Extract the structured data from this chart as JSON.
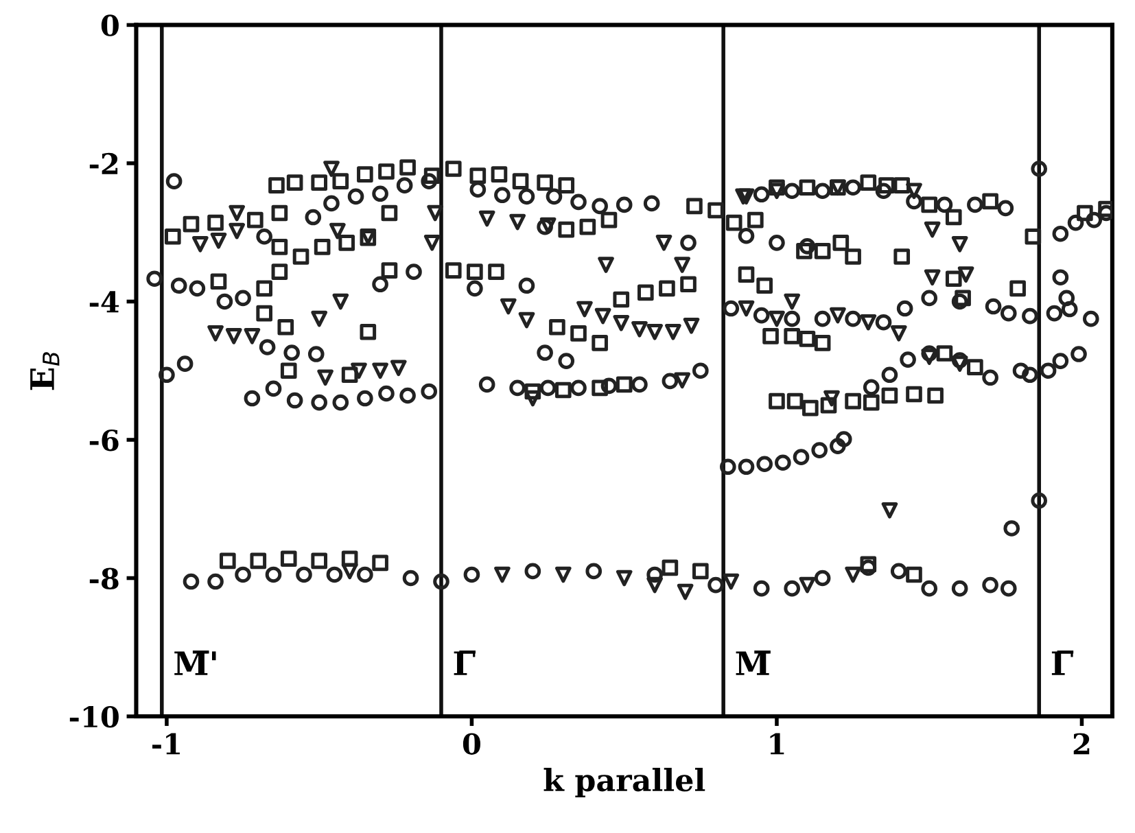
{
  "chart_data": {
    "type": "scatter",
    "xlabel": "k parallel",
    "ylabel": "E$_{B}$",
    "xlim": [
      -1.1,
      2.1
    ],
    "ylim": [
      -10,
      0
    ],
    "xticks": [
      -1,
      0,
      1,
      2
    ],
    "yticks": [
      0,
      -2,
      -4,
      -6,
      -8,
      -10
    ],
    "grid": false,
    "legend": false,
    "series": [
      {
        "color": "#222222",
        "marker": "circle",
        "x": [
          -0.976,
          -0.46,
          -0.38,
          -0.3,
          -0.22,
          -0.14,
          0.02,
          0.1,
          0.18,
          0.27,
          0.35,
          0.42,
          0.5,
          0.59,
          0.71,
          -0.68,
          -0.52,
          0.24,
          -1.04,
          -0.96,
          -0.9,
          -0.81,
          -0.75,
          -0.3,
          -0.19,
          0.01,
          0.18,
          0.24,
          0.31,
          -0.67,
          -0.59,
          -0.51,
          -1.0,
          -0.94,
          -0.72,
          -0.65,
          -0.58,
          -0.5,
          -0.43,
          -0.35,
          -0.28,
          -0.21,
          -0.14,
          0.05,
          0.15,
          0.25,
          0.35,
          0.45,
          0.55,
          0.65,
          0.75,
          0.84,
          0.9,
          0.96,
          1.02,
          1.08,
          1.14,
          1.2,
          1.22,
          1.31,
          1.37,
          1.43,
          1.5,
          1.6,
          1.7,
          1.8,
          1.83,
          1.89,
          1.93,
          1.99,
          1.71,
          1.76,
          1.83,
          1.91,
          1.96,
          2.03,
          1.95,
          1.93,
          1.86,
          1.93,
          1.98,
          2.04,
          2.08,
          0.9,
          1.0,
          1.1,
          0.85,
          0.95,
          1.05,
          1.15,
          1.25,
          1.35,
          1.42,
          1.5,
          1.6,
          0.95,
          1.05,
          1.15,
          1.25,
          1.35,
          1.45,
          1.55,
          1.65,
          1.75,
          1.77,
          1.86,
          -0.92,
          -0.84,
          -0.75,
          -0.65,
          -0.55,
          -0.45,
          -0.35,
          -0.2,
          -0.1,
          0.0,
          0.2,
          0.4,
          0.6,
          0.8,
          0.95,
          1.05,
          1.15,
          1.3,
          1.4,
          1.5,
          1.6,
          1.7,
          1.76
        ],
        "values": [
          -2.26,
          -2.58,
          -2.48,
          -2.44,
          -2.32,
          -2.26,
          -2.38,
          -2.46,
          -2.48,
          -2.48,
          -2.56,
          -2.62,
          -2.6,
          -2.58,
          -3.15,
          -3.06,
          -2.78,
          -2.92,
          -3.67,
          -3.77,
          -3.81,
          -4.0,
          -3.95,
          -3.75,
          -3.57,
          -3.81,
          -3.77,
          -4.74,
          -4.86,
          -4.66,
          -4.74,
          -4.76,
          -5.06,
          -4.9,
          -5.4,
          -5.26,
          -5.43,
          -5.46,
          -5.46,
          -5.4,
          -5.33,
          -5.36,
          -5.3,
          -5.2,
          -5.25,
          -5.25,
          -5.25,
          -5.22,
          -5.2,
          -5.15,
          -5.0,
          -6.39,
          -6.39,
          -6.35,
          -6.33,
          -6.25,
          -6.15,
          -6.09,
          -5.99,
          -5.24,
          -5.06,
          -4.84,
          -4.75,
          -4.85,
          -5.1,
          -5.0,
          -5.06,
          -5.0,
          -4.86,
          -4.76,
          -4.07,
          -4.17,
          -4.21,
          -4.17,
          -4.11,
          -4.25,
          -3.95,
          -3.65,
          -2.08,
          -3.02,
          -2.86,
          -2.82,
          -2.72,
          -3.05,
          -3.15,
          -3.2,
          -4.1,
          -4.2,
          -4.25,
          -4.25,
          -4.25,
          -4.3,
          -4.1,
          -3.95,
          -4.0,
          -2.45,
          -2.4,
          -2.4,
          -2.35,
          -2.4,
          -2.55,
          -2.6,
          -2.6,
          -2.65,
          -7.28,
          -6.88,
          -8.05,
          -8.05,
          -7.95,
          -7.95,
          -7.95,
          -7.95,
          -7.95,
          -8.0,
          -8.05,
          -7.95,
          -7.9,
          -7.9,
          -7.95,
          -8.1,
          -8.15,
          -8.15,
          -8.0,
          -7.85,
          -7.9,
          -8.15,
          -8.15,
          -8.1,
          -8.15
        ]
      },
      {
        "color": "#222222",
        "marker": "square",
        "x": [
          -0.64,
          -0.58,
          -0.5,
          -0.43,
          -0.35,
          -0.28,
          -0.21,
          -0.13,
          -0.06,
          0.02,
          0.09,
          0.16,
          0.24,
          0.31,
          0.73,
          0.8,
          -0.98,
          -0.92,
          -0.84,
          -0.71,
          -0.63,
          -0.27,
          -0.63,
          -0.56,
          -0.49,
          -0.41,
          -0.34,
          0.31,
          0.38,
          0.45,
          -0.83,
          -0.68,
          -0.63,
          -0.68,
          -0.27,
          -0.61,
          -0.34,
          -0.6,
          -0.4,
          -0.06,
          0.01,
          0.08,
          0.28,
          0.35,
          0.42,
          0.49,
          0.57,
          0.64,
          0.71,
          0.9,
          0.96,
          0.98,
          1.05,
          1.1,
          1.15,
          1.09,
          1.15,
          1.21,
          1.25,
          1.41,
          1.58,
          1.84,
          1.0,
          1.06,
          1.11,
          1.17,
          1.25,
          1.31,
          1.37,
          1.45,
          1.52,
          1.58,
          1.79,
          1.61,
          1.3,
          1.36,
          1.41,
          0.93,
          0.86,
          1.0,
          1.1,
          1.2,
          1.5,
          1.7,
          2.01,
          2.08,
          0.2,
          0.3,
          0.42,
          0.5,
          1.55,
          1.65,
          -0.8,
          -0.7,
          -0.6,
          -0.5,
          -0.4,
          -0.3,
          0.65,
          0.75,
          1.3,
          1.45
        ],
        "values": [
          -2.32,
          -2.28,
          -2.28,
          -2.26,
          -2.16,
          -2.12,
          -2.06,
          -2.18,
          -2.08,
          -2.18,
          -2.16,
          -2.26,
          -2.28,
          -2.32,
          -2.62,
          -2.68,
          -3.06,
          -2.88,
          -2.86,
          -2.82,
          -2.72,
          -2.72,
          -3.21,
          -3.35,
          -3.21,
          -3.15,
          -3.08,
          -2.96,
          -2.92,
          -2.82,
          -3.71,
          -3.81,
          -3.57,
          -4.17,
          -3.55,
          -4.37,
          -4.44,
          -5.0,
          -5.06,
          -3.55,
          -3.57,
          -3.57,
          -4.37,
          -4.46,
          -4.6,
          -3.97,
          -3.87,
          -3.81,
          -3.75,
          -3.61,
          -3.77,
          -4.5,
          -4.5,
          -4.54,
          -4.6,
          -3.27,
          -3.27,
          -3.15,
          -3.35,
          -3.35,
          -2.78,
          -3.06,
          -5.44,
          -5.44,
          -5.54,
          -5.5,
          -5.44,
          -5.46,
          -5.36,
          -5.34,
          -5.36,
          -3.67,
          -3.81,
          -3.95,
          -2.28,
          -2.32,
          -2.32,
          -2.82,
          -2.86,
          -2.35,
          -2.35,
          -2.35,
          -2.6,
          -2.55,
          -2.72,
          -2.66,
          -5.3,
          -5.28,
          -5.25,
          -5.2,
          -4.75,
          -4.95,
          -7.75,
          -7.75,
          -7.72,
          -7.75,
          -7.72,
          -7.78,
          -7.85,
          -7.9,
          -7.8,
          -7.95
        ]
      },
      {
        "color": "#222222",
        "marker": "triangle_down",
        "x": [
          -0.46,
          -0.89,
          -0.83,
          -0.77,
          -0.77,
          -0.44,
          -0.34,
          -0.13,
          -0.84,
          -0.78,
          -0.72,
          -0.43,
          -0.5,
          -0.48,
          -0.37,
          -0.3,
          -0.24,
          0.44,
          0.63,
          0.69,
          0.12,
          0.18,
          0.37,
          0.43,
          0.49,
          0.55,
          0.6,
          0.66,
          0.72,
          0.89,
          0.69,
          0.2,
          0.9,
          1.6,
          1.37,
          1.51,
          1.62,
          1.05,
          1.4,
          1.18,
          1.51,
          -0.12,
          0.05,
          0.15,
          0.25,
          0.1,
          0.3,
          0.5,
          0.6,
          0.7,
          0.85,
          1.1,
          1.25,
          -0.4,
          0.9,
          1.0,
          1.2,
          1.3,
          1.5,
          1.6,
          1.0,
          1.2,
          1.45
        ],
        "values": [
          -2.08,
          -3.17,
          -3.12,
          -2.98,
          -2.72,
          -2.98,
          -3.06,
          -3.15,
          -4.46,
          -4.5,
          -4.5,
          -4.0,
          -4.25,
          -5.1,
          -5.0,
          -5.0,
          -4.96,
          -3.47,
          -3.15,
          -3.47,
          -4.07,
          -4.27,
          -4.11,
          -4.21,
          -4.31,
          -4.4,
          -4.44,
          -4.44,
          -4.35,
          -2.48,
          -5.14,
          -5.4,
          -2.48,
          -3.17,
          -7.02,
          -3.65,
          -3.61,
          -4.0,
          -4.46,
          -5.4,
          -2.96,
          -2.72,
          -2.8,
          -2.85,
          -2.9,
          -7.95,
          -7.95,
          -8.0,
          -8.1,
          -8.2,
          -8.05,
          -8.1,
          -7.95,
          -7.9,
          -4.1,
          -4.25,
          -4.2,
          -4.3,
          -4.8,
          -4.9,
          -2.4,
          -2.35,
          -2.4
        ]
      }
    ],
    "ref_lines": [
      {
        "axis": "x",
        "value": -1.016,
        "label": "M̅'",
        "color": "#111111"
      },
      {
        "axis": "x",
        "value": -0.1,
        "label": "Γ̅",
        "color": "#111111"
      },
      {
        "axis": "x",
        "value": 0.825,
        "label": "M̅",
        "color": "#111111"
      },
      {
        "axis": "x",
        "value": 1.86,
        "label": "Γ̅",
        "color": "#111111"
      }
    ]
  }
}
